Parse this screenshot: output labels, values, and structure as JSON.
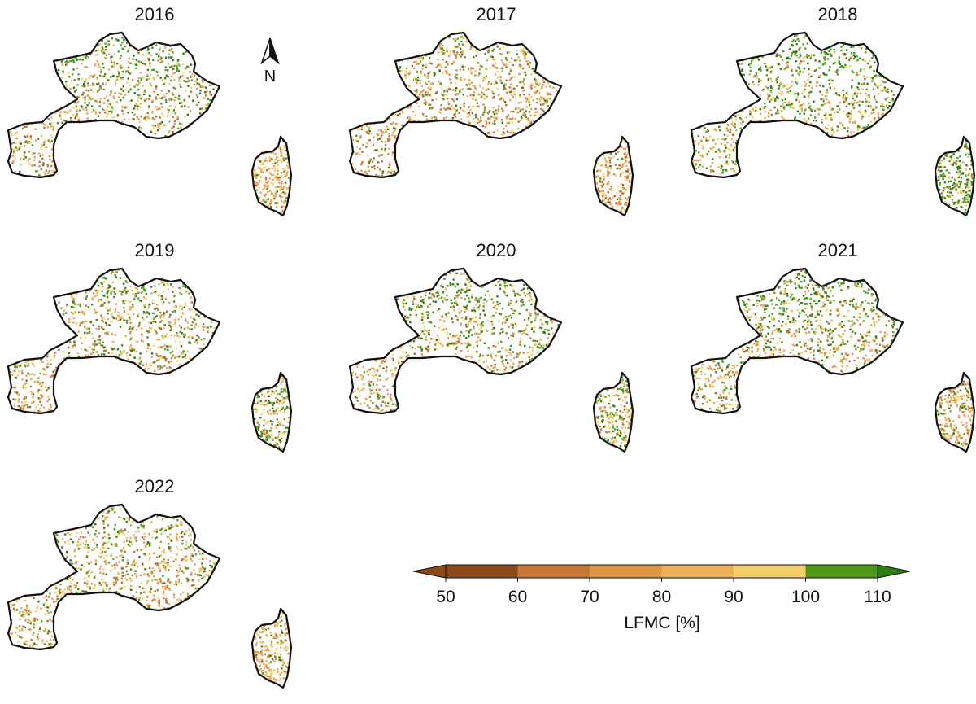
{
  "panels": [
    {
      "year": "2016",
      "green": 0.42,
      "dark": 0.3,
      "corsica": "tan"
    },
    {
      "year": "2017",
      "green": 0.22,
      "dark": 0.5,
      "corsica": "brown"
    },
    {
      "year": "2018",
      "green": 0.55,
      "dark": 0.1,
      "corsica": "green"
    },
    {
      "year": "2019",
      "green": 0.35,
      "dark": 0.3,
      "corsica": "mixed"
    },
    {
      "year": "2020",
      "green": 0.45,
      "dark": 0.25,
      "corsica": "mixed"
    },
    {
      "year": "2021",
      "green": 0.45,
      "dark": 0.3,
      "corsica": "tan"
    },
    {
      "year": "2022",
      "green": 0.25,
      "dark": 0.35,
      "corsica": "tan"
    }
  ],
  "north_arrow": {
    "label": "N"
  },
  "legend": {
    "title": "LFMC [%]",
    "ticks": [
      "50",
      "60",
      "70",
      "80",
      "90",
      "100",
      "110"
    ],
    "colors": [
      "#8b4a1c",
      "#c6783a",
      "#dc9746",
      "#eab15c",
      "#f5cf6e",
      "#4f9a1a",
      "#2f7d10"
    ]
  }
}
